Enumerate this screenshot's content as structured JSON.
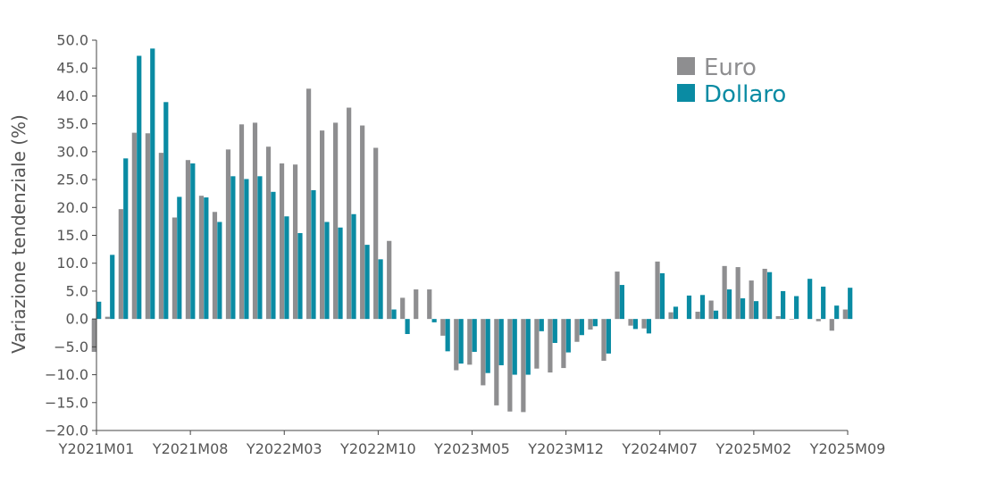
{
  "chart_data": {
    "type": "bar",
    "ylabel": "Variazione tendenziale (%)",
    "xlabel": "",
    "ylim": [
      -20,
      50
    ],
    "yticks": [
      -20,
      -15,
      -10,
      -5,
      0,
      5,
      10,
      15,
      20,
      25,
      30,
      35,
      40,
      45,
      50
    ],
    "ytick_labels": [
      "−20.0",
      "−15.0",
      "−10.0",
      "−5.0",
      "0.0",
      "5.0",
      "10.0",
      "15.0",
      "20.0",
      "25.0",
      "30.0",
      "35.0",
      "40.0",
      "45.0",
      "50.0"
    ],
    "x_tick_labels": [
      "Y2021M01",
      "Y2021M08",
      "Y2022M03",
      "Y2022M10",
      "Y2023M05",
      "Y2023M12",
      "Y2024M07",
      "Y2025M02",
      "Y2025M09"
    ],
    "x_tick_index": [
      0,
      7,
      14,
      21,
      28,
      35,
      42,
      49,
      56
    ],
    "categories": [
      "Y2021M01",
      "Y2021M02",
      "Y2021M03",
      "Y2021M04",
      "Y2021M05",
      "Y2021M06",
      "Y2021M07",
      "Y2021M08",
      "Y2021M09",
      "Y2021M10",
      "Y2021M11",
      "Y2021M12",
      "Y2022M01",
      "Y2022M02",
      "Y2022M03",
      "Y2022M04",
      "Y2022M05",
      "Y2022M06",
      "Y2022M07",
      "Y2022M08",
      "Y2022M09",
      "Y2022M10",
      "Y2022M11",
      "Y2022M12",
      "Y2023M01",
      "Y2023M02",
      "Y2023M03",
      "Y2023M04",
      "Y2023M05",
      "Y2023M06",
      "Y2023M07",
      "Y2023M08",
      "Y2023M09",
      "Y2023M10",
      "Y2023M11",
      "Y2023M12",
      "Y2024M01",
      "Y2024M02",
      "Y2024M03",
      "Y2024M04",
      "Y2024M05",
      "Y2024M06",
      "Y2024M07",
      "Y2024M08",
      "Y2024M09",
      "Y2024M10",
      "Y2024M11",
      "Y2024M12",
      "Y2025M01",
      "Y2025M02",
      "Y2025M03",
      "Y2025M04",
      "Y2025M05",
      "Y2025M06",
      "Y2025M07",
      "Y2025M08",
      "Y2025M09"
    ],
    "series": [
      {
        "name": "Euro",
        "color": "#8e8e90",
        "values": [
          -5.9,
          0.4,
          19.7,
          33.4,
          33.3,
          29.8,
          18.2,
          28.5,
          22.1,
          19.2,
          30.4,
          34.9,
          35.2,
          30.9,
          27.9,
          27.7,
          41.3,
          33.8,
          35.2,
          37.9,
          34.7,
          30.7,
          14.0,
          3.8,
          5.3,
          5.3,
          -3.0,
          -9.2,
          -8.2,
          -11.9,
          -15.5,
          -16.6,
          -16.7,
          -8.9,
          -9.6,
          -8.8,
          -4.1,
          -1.9,
          -7.5,
          8.5,
          -1.2,
          -1.7,
          10.3,
          1.2,
          0.0,
          1.3,
          3.3,
          9.5,
          9.3,
          6.9,
          9.0,
          0.5,
          -0.1,
          0.0,
          -0.4,
          -2.1,
          1.7
        ]
      },
      {
        "name": "Dollaro",
        "color": "#0a8ba3",
        "values": [
          3.1,
          11.5,
          28.8,
          47.2,
          48.5,
          38.9,
          21.9,
          27.9,
          21.8,
          17.4,
          25.6,
          25.1,
          25.6,
          22.8,
          18.4,
          15.4,
          23.1,
          17.4,
          16.4,
          18.8,
          13.3,
          10.7,
          1.7,
          -2.7,
          0.0,
          -0.6,
          -5.8,
          -8.0,
          -5.9,
          -9.7,
          -8.3,
          -10.0,
          -10.0,
          -2.2,
          -4.3,
          -6.0,
          -2.9,
          -1.3,
          -6.2,
          6.1,
          -1.8,
          -2.6,
          8.2,
          2.2,
          4.2,
          4.3,
          1.5,
          5.3,
          3.7,
          3.2,
          8.4,
          5.0,
          4.1,
          7.2,
          5.8,
          2.4,
          5.6
        ]
      }
    ],
    "legend_position": "top-right",
    "grid": false
  }
}
